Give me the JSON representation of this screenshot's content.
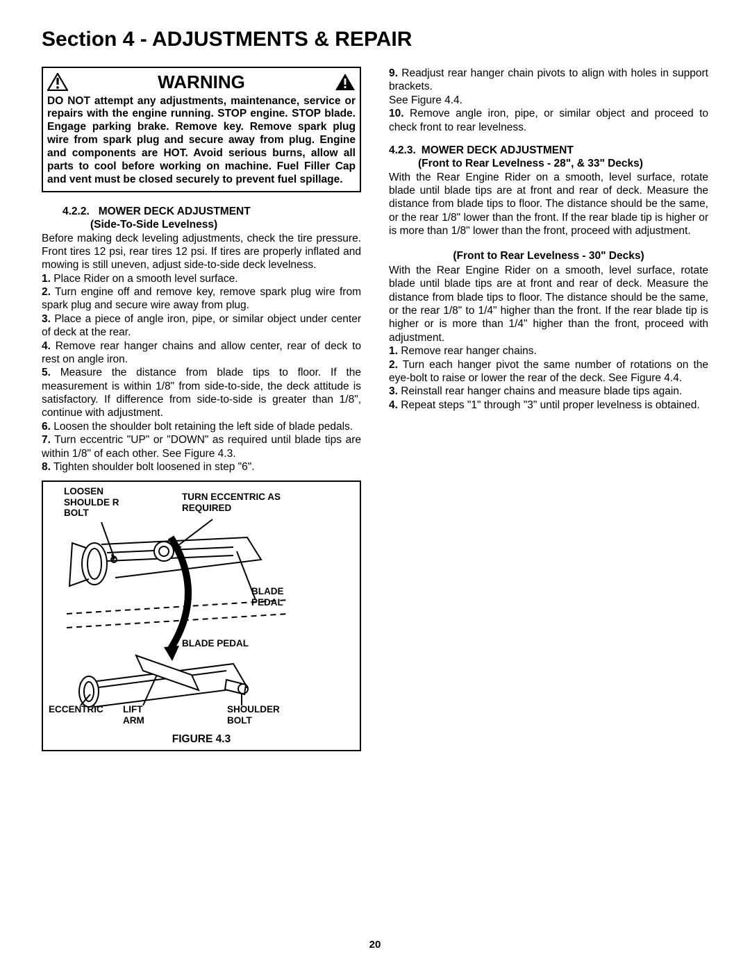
{
  "section_title": "Section 4 - ADJUSTMENTS & REPAIR",
  "warning": {
    "title": "WARNING",
    "body": "DO NOT attempt any adjustments, maintenance, service or repairs with the engine running. STOP engine. STOP blade. Engage parking brake. Remove key. Remove spark plug wire from spark plug and secure away from plug. Engine and components are HOT. Avoid serious burns, allow all parts to cool before working on machine. Fuel Filler Cap and vent must be closed securely to prevent fuel spillage."
  },
  "left": {
    "heading_num": "4.2.2.",
    "heading_text": "MOWER DECK ADJUSTMENT",
    "heading_sub": "(Side-To-Side Levelness)",
    "intro": "Before making deck leveling adjustments, check the tire pressure. Front tires 12 psi, rear tires 12 psi. If tires are properly inflated and mowing is still uneven, adjust side-to-side deck levelness.",
    "steps": [
      "Place Rider on a smooth level surface.",
      "Turn engine off and remove key, remove spark plug wire from spark plug and secure wire away from plug.",
      "Place a piece of angle iron, pipe, or similar object under center of deck at the rear.",
      "Remove rear hanger chains and allow center, rear of deck to rest on angle iron.",
      "Measure the distance from blade tips to floor. If the measurement is within 1/8\" from side-to-side, the deck attitude is satisfactory. If difference from side-to-side is greater than 1/8\", continue with adjustment.",
      "Loosen the shoulder bolt retaining the left side of blade pedals.",
      "Turn eccentric \"UP\" or \"DOWN\" as required until blade tips are within 1/8\" of each other. See Figure 4.3.",
      "Tighten shoulder bolt loosened in step \"6\"."
    ]
  },
  "right": {
    "cont_steps": [
      {
        "n": "9.",
        "t": "Readjust rear hanger chain pivots to align with holes in support brackets."
      },
      {
        "n": "",
        "t": "See Figure 4.4."
      },
      {
        "n": "10.",
        "t": "Remove angle iron, pipe, or similar object and proceed to check front to rear levelness."
      }
    ],
    "heading_num": "4.2.3.",
    "heading_text": "MOWER DECK ADJUSTMENT",
    "heading_sub": "(Front to Rear Levelness - 28\", & 33\" Decks)",
    "para1": "With the Rear Engine Rider on a smooth, level surface, rotate blade until blade tips are at front and rear of deck. Measure the distance from blade tips to floor. The distance should be the same, or the rear 1/8\" lower than the front. If the rear blade tip is higher or is more than 1/8\" lower than the front, proceed with adjustment.",
    "sub2": "(Front to Rear Levelness - 30\" Decks)",
    "para2": "With the Rear Engine Rider on a smooth, level surface, rotate blade until blade tips are at front and rear of deck. Measure the distance from blade tips to floor. The distance should be the same, or the rear 1/8\" to 1/4\" higher than the front. If the rear blade tip is higher or is more than 1/4\" higher than the front, proceed with adjustment.",
    "steps": [
      "Remove rear hanger chains.",
      "Turn each hanger pivot the same number of rotations on the eye-bolt to raise or lower the rear of the deck. See Figure 4.4.",
      "Reinstall rear hanger chains and measure blade tips again.",
      "Repeat steps \"1\" through \"3\" until proper levelness is obtained."
    ]
  },
  "figure": {
    "labels": {
      "loosen": "LOOSEN SHOULDE R BOLT",
      "turn": "TURN ECCENTRIC AS REQUIRED",
      "blade_pedal1": "BLADE PEDAL",
      "blade_pedal2": "BLADE PEDAL",
      "eccentric": "ECCENTRIC",
      "lift_arm": "LIFT ARM",
      "shoulder_bolt": "SHOULDER BOLT"
    },
    "caption": "FIGURE 4.3"
  },
  "page_number": "20",
  "colors": {
    "text": "#000000",
    "bg": "#ffffff",
    "border": "#000000"
  }
}
